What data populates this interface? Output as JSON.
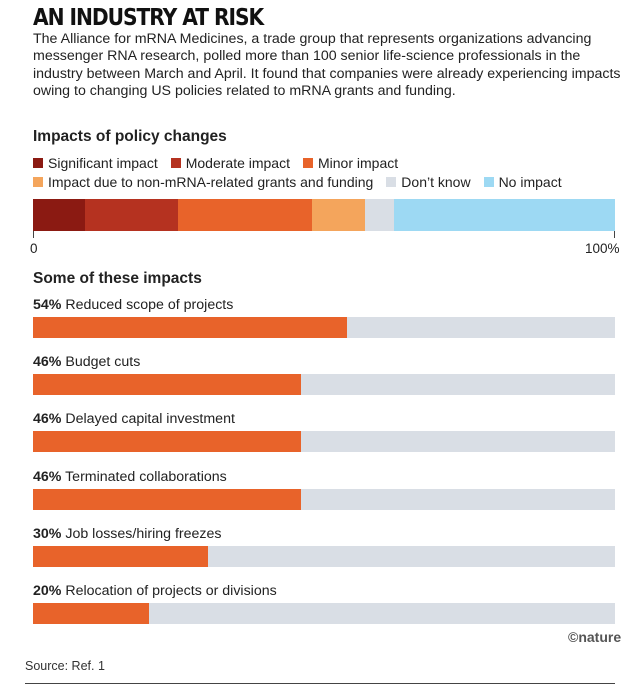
{
  "header": {
    "title": "AN INDUSTRY AT RISK",
    "description": "The Alliance for mRNA Medicines, a trade group that represents organizations advancing messenger RNA research, polled more than 100 senior life-science professionals in the industry between March and April. It found that companies were already experiencing impacts owing to changing US policies related to mRNA grants and funding."
  },
  "footer": {
    "logo": "©nature",
    "source": "Source: Ref. 1"
  },
  "colors": {
    "significant": "#8b1a12",
    "moderate": "#b53220",
    "minor": "#e8632a",
    "non_mrna": "#f4a55c",
    "dont_know": "#d9dee5",
    "no_impact": "#9dd9f3",
    "track": "#d9dee5"
  },
  "chart_data": [
    {
      "type": "bar",
      "stacked": true,
      "orientation": "horizontal",
      "title": "Impacts of policy changes",
      "series": [
        {
          "name": "Significant impact",
          "values": [
            9
          ],
          "color": "#8b1a12"
        },
        {
          "name": "Moderate impact",
          "values": [
            16
          ],
          "color": "#b53220"
        },
        {
          "name": "Minor impact",
          "values": [
            23
          ],
          "color": "#e8632a"
        },
        {
          "name": "Impact due to non-mRNA-related grants and funding",
          "values": [
            9
          ],
          "color": "#f4a55c"
        },
        {
          "name": "Don’t know",
          "values": [
            5
          ],
          "color": "#d9dee5"
        },
        {
          "name": "No impact",
          "values": [
            38
          ],
          "color": "#9dd9f3"
        }
      ],
      "xlim": [
        0,
        100
      ],
      "tick_labels": [
        "0",
        "100%"
      ],
      "legend_position": "top"
    },
    {
      "type": "bar",
      "orientation": "horizontal",
      "title": "Some of these impacts",
      "xlim": [
        0,
        100
      ],
      "items": [
        {
          "percent_label": "54%",
          "label": "Reduced scope of projects",
          "value": 54
        },
        {
          "percent_label": "46%",
          "label": "Budget cuts",
          "value": 46
        },
        {
          "percent_label": "46%",
          "label": "Delayed capital investment",
          "value": 46
        },
        {
          "percent_label": "46%",
          "label": "Terminated collaborations",
          "value": 46
        },
        {
          "percent_label": "30%",
          "label": "Job losses/hiring freezes",
          "value": 30
        },
        {
          "percent_label": "20%",
          "label": "Relocation of projects or divisions",
          "value": 20
        }
      ]
    }
  ]
}
